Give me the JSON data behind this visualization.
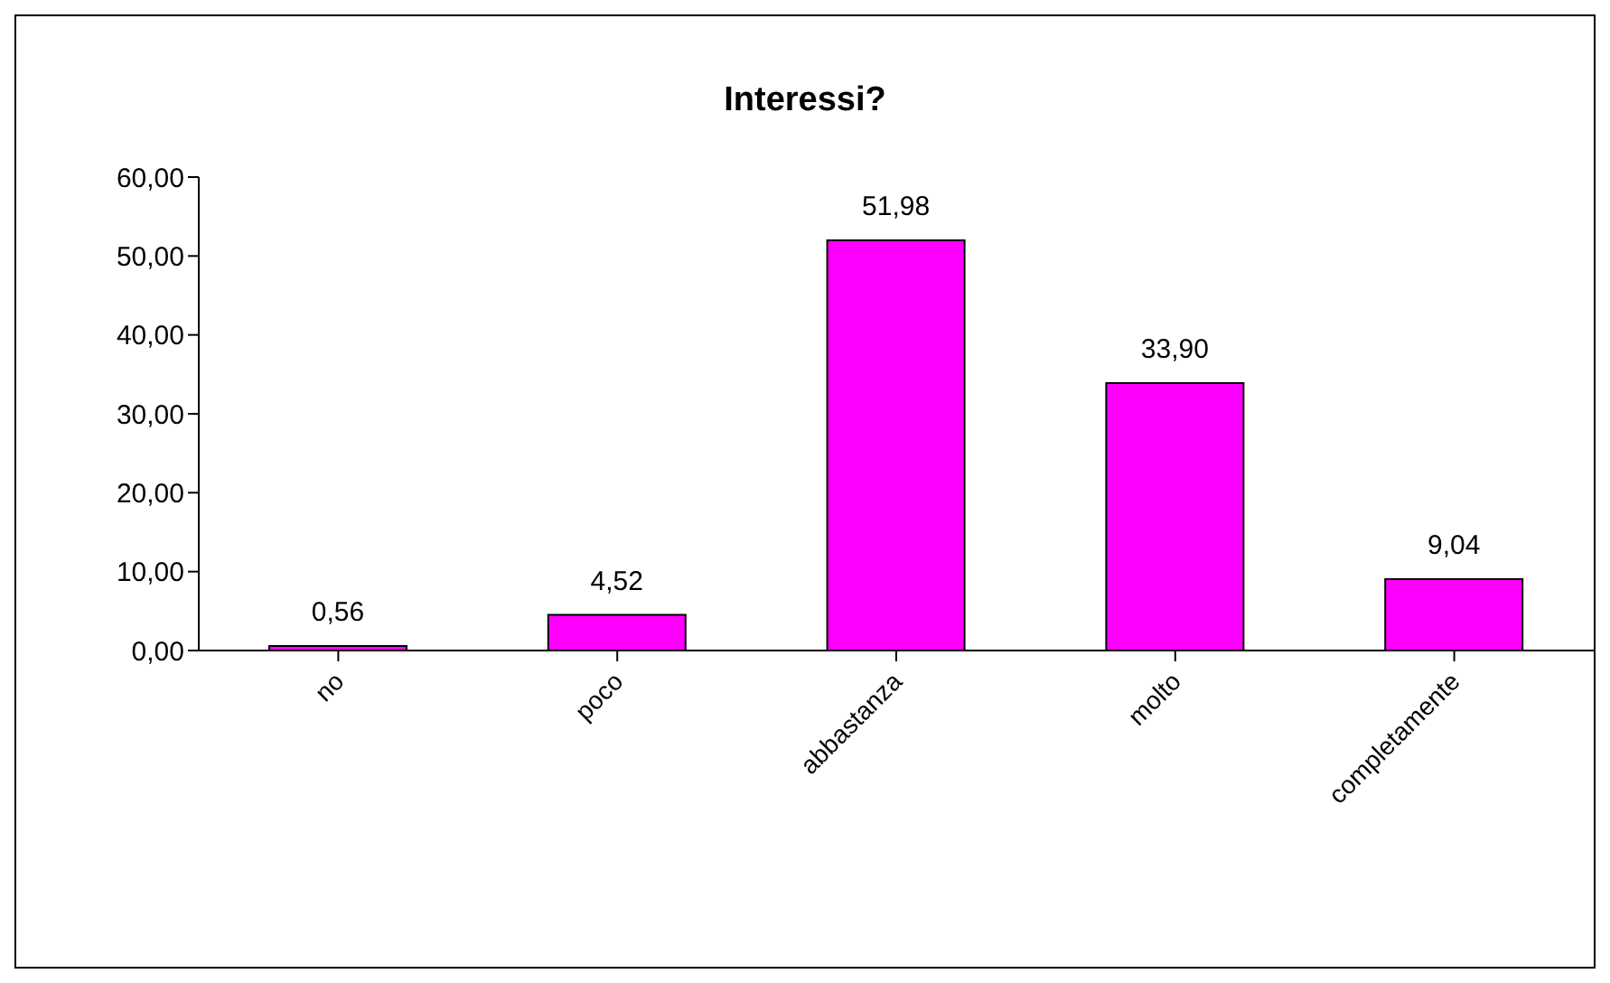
{
  "chart_data": {
    "type": "bar",
    "title": "Interessi?",
    "categories": [
      "no",
      "poco",
      "abbastanza",
      "molto",
      "completamente"
    ],
    "values": [
      0.56,
      4.52,
      51.98,
      33.9,
      9.04
    ],
    "value_labels": [
      "0,56",
      "4,52",
      "51,98",
      "33,90",
      "9,04"
    ],
    "color": "#ff00ff",
    "ylim": [
      0,
      60
    ],
    "yticks": [
      {
        "value": 0,
        "label": "0,00"
      },
      {
        "value": 10,
        "label": "10,00"
      },
      {
        "value": 20,
        "label": "20,00"
      },
      {
        "value": 30,
        "label": "30,00"
      },
      {
        "value": 40,
        "label": "40,00"
      },
      {
        "value": 50,
        "label": "50,00"
      },
      {
        "value": 60,
        "label": "60,00"
      }
    ],
    "grid": false,
    "legend": false
  }
}
